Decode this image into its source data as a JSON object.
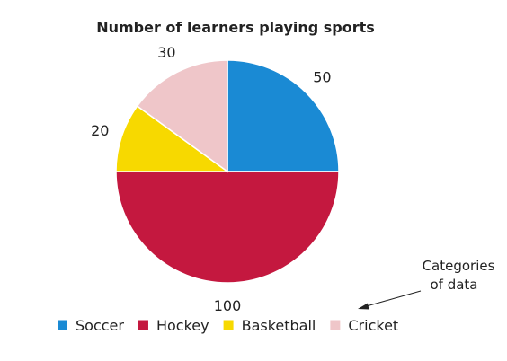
{
  "chart_data": {
    "type": "pie",
    "title": "Number of learners playing sports",
    "categories": [
      "Soccer",
      "Hockey",
      "Basketball",
      "Cricket"
    ],
    "values": [
      50,
      100,
      20,
      30
    ],
    "colors": [
      "#1a8ad4",
      "#c4183f",
      "#f7d900",
      "#efc6c9"
    ],
    "start_angle": "12 o'clock",
    "direction": "clockwise",
    "legend": "bottom",
    "annotation": {
      "lines": [
        "Categories",
        "of data"
      ]
    }
  }
}
